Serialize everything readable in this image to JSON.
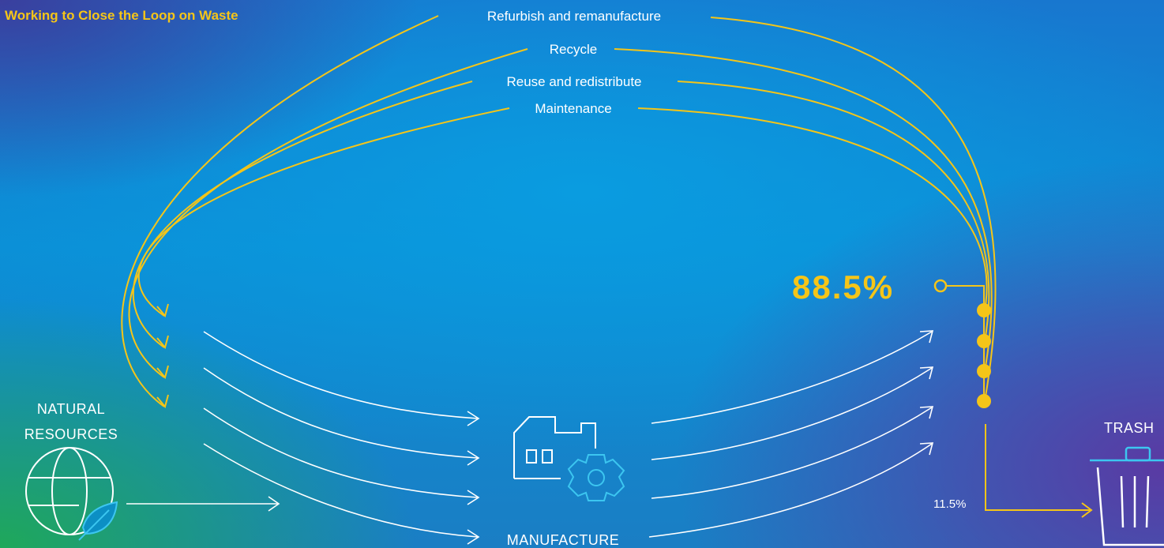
{
  "title": "Working to Close the Loop on Waste",
  "loops": [
    {
      "label": "Refurbish and remanufacture"
    },
    {
      "label": "Recycle"
    },
    {
      "label": "Reuse and redistribute"
    },
    {
      "label": "Maintenance"
    }
  ],
  "nodes": {
    "natural_resources": {
      "line1": "NATURAL",
      "line2": "RESOURCES",
      "icon": "globe-leaf-icon"
    },
    "manufacture": {
      "label": "MANUFACTURE",
      "icon": "factory-gear-icon"
    },
    "trash": {
      "label": "TRASH",
      "icon": "trash-can-icon"
    }
  },
  "stats": {
    "recovered_pct": "88.5%",
    "trash_pct": "11.5%"
  },
  "colors": {
    "loop": "#f5c518",
    "flow": "#ffffff",
    "icon_accent": "#3cc6f0"
  }
}
